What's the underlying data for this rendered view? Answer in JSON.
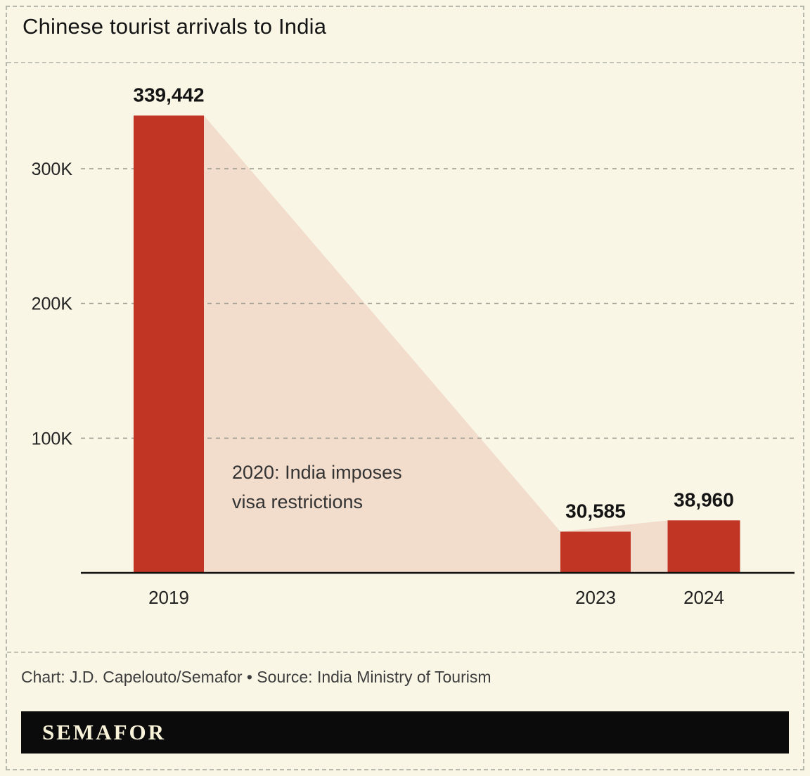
{
  "chart_data": {
    "type": "bar",
    "title": "Chinese tourist arrivals to India",
    "categories": [
      "2019",
      "2023",
      "2024"
    ],
    "values": [
      339442,
      30585,
      38960
    ],
    "value_labels": [
      "339,442",
      "30,585",
      "38,960"
    ],
    "xlabel": "",
    "ylabel": "",
    "ylim": [
      0,
      340000
    ],
    "yticks": [
      100000,
      200000,
      300000
    ],
    "ytick_labels": [
      "100K",
      "200K",
      "300K"
    ],
    "grid": true,
    "legend": false,
    "annotation": "2020: India imposes visa restrictions",
    "annotation_lines": [
      "2020: India imposes",
      "visa restrictions"
    ],
    "bar_color": "#c13524",
    "area_color": "#f2dccc",
    "background_color": "#f9f6e6"
  },
  "footer": {
    "credit": "Chart: J.D. Capelouto/Semafor • Source: India Ministry of Tourism"
  },
  "branding": {
    "logo_text": "SEMAFOR"
  }
}
